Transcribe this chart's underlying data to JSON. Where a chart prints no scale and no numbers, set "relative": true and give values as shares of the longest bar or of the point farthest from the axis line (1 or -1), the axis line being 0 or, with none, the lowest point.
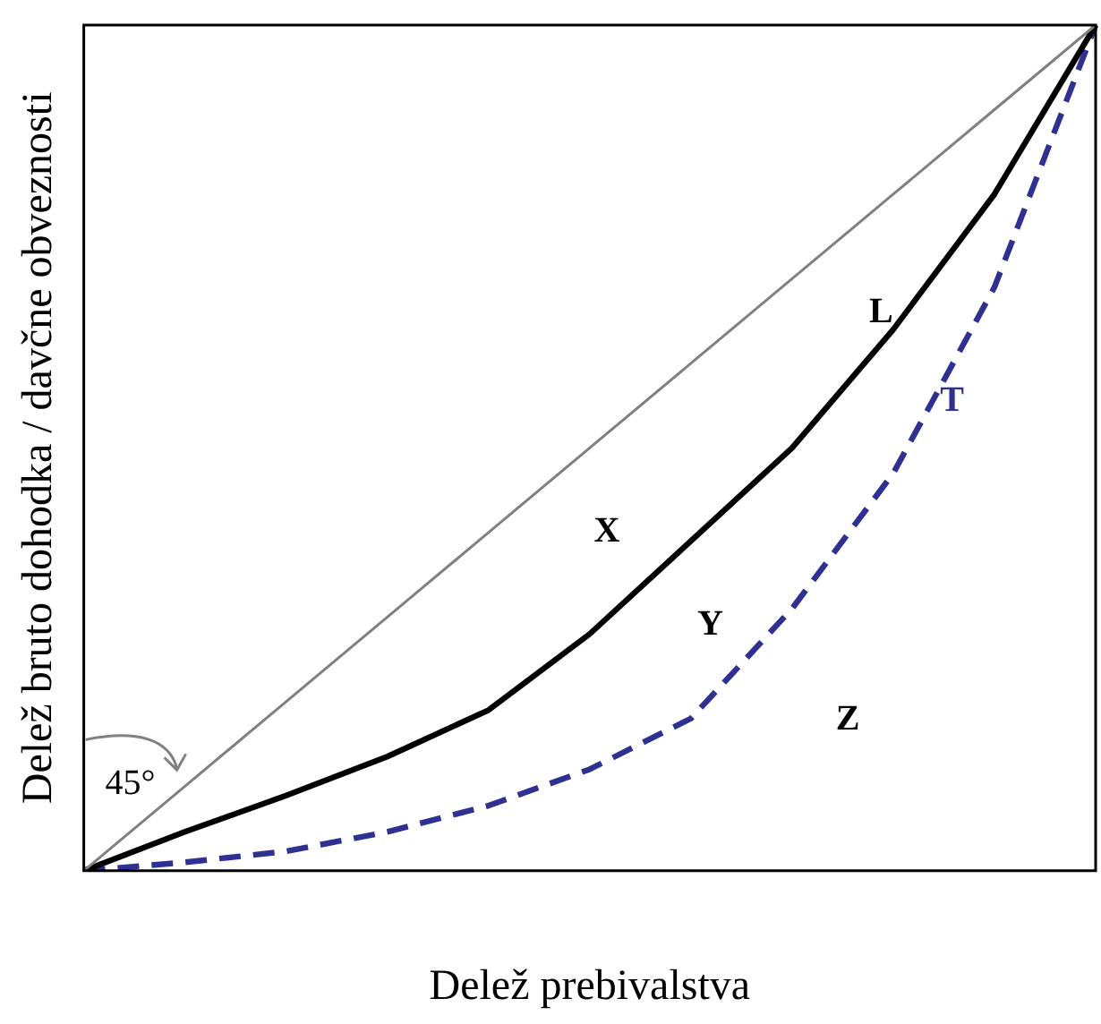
{
  "chart_data": {
    "type": "line",
    "relative": true,
    "xlabel": "Delež prebivalstva",
    "ylabel": "Delež bruto dohodka / davčne obveznosti",
    "categories": [
      null,
      null,
      null,
      null,
      null,
      null,
      null,
      null,
      null,
      null,
      null
    ],
    "series": [
      {
        "color": "#808080",
        "values": [
          0,
          0.1,
          0.2,
          0.3,
          0.4,
          0.5,
          0.6,
          0.7,
          0.8,
          0.9,
          1
        ]
      },
      {
        "name": "L",
        "color": "#000000",
        "line_style": "solid",
        "values": [
          0,
          0.046,
          0.089,
          0.135,
          0.19,
          0.28,
          0.39,
          0.5,
          0.64,
          0.8,
          1
        ]
      },
      {
        "name": "T",
        "color": "#2e3192",
        "line_style": "dashed",
        "values": [
          0,
          0.01,
          0.023,
          0.046,
          0.077,
          0.12,
          0.18,
          0.31,
          0.47,
          0.69,
          1
        ]
      }
    ],
    "annotations": [
      "X",
      "Y",
      "Z",
      "45°"
    ],
    "legend": false,
    "grid": false,
    "marker": "none"
  }
}
